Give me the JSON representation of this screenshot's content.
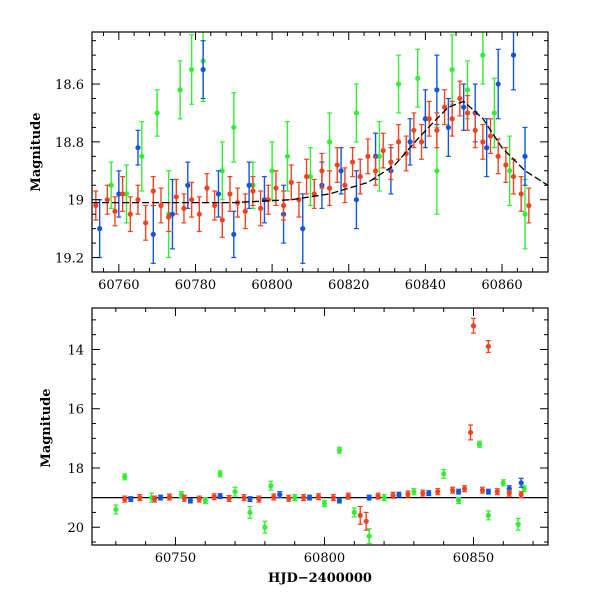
{
  "colors": {
    "green": "#33ee33",
    "blue": "#1155dd",
    "red": "#ee4422",
    "model": "#000000"
  },
  "chart_data": [
    {
      "type": "scatter",
      "title": "",
      "xlabel": "",
      "ylabel": "Magnitude",
      "xlim": [
        60753,
        60872
      ],
      "ylim": [
        19.25,
        18.42
      ],
      "y_inverted": true,
      "xticks": [
        60760,
        60780,
        60800,
        60820,
        60840,
        60860
      ],
      "yticks": [
        18.6,
        18.8,
        19,
        19.2
      ],
      "xtick_labels": [
        "60760",
        "60780",
        "60800",
        "60820",
        "60840",
        "60860"
      ],
      "ytick_labels": [
        "18.6",
        "18.8",
        "19",
        "19.2"
      ],
      "model_curve": {
        "x": [
          60753,
          60790,
          60805,
          60815,
          60825,
          60832,
          60838,
          60843,
          60846,
          60850,
          60855,
          60860,
          60866,
          60872
        ],
        "y": [
          19.01,
          19.01,
          19.0,
          18.98,
          18.94,
          18.88,
          18.79,
          18.72,
          18.68,
          18.66,
          18.72,
          18.82,
          18.9,
          18.95
        ]
      },
      "series": [
        {
          "name": "",
          "color": "green",
          "points": [
            [
              60758,
              18.95,
              0.08
            ],
            [
              60762,
              18.98,
              0.1
            ],
            [
              60766,
              18.85,
              0.12
            ],
            [
              60770,
              18.7,
              0.08
            ],
            [
              60773,
              19.05,
              0.15
            ],
            [
              60776,
              18.62,
              0.1
            ],
            [
              60779,
              18.55,
              0.12
            ],
            [
              60782,
              18.52,
              0.14
            ],
            [
              60787,
              18.9,
              0.1
            ],
            [
              60790,
              18.75,
              0.12
            ],
            [
              60795,
              18.95,
              0.08
            ],
            [
              60800,
              18.9,
              0.1
            ],
            [
              60804,
              18.85,
              0.12
            ],
            [
              60810,
              18.92,
              0.1
            ],
            [
              60815,
              18.8,
              0.1
            ],
            [
              60822,
              18.7,
              0.1
            ],
            [
              60828,
              18.85,
              0.12
            ],
            [
              60833,
              18.6,
              0.1
            ],
            [
              60838,
              18.58,
              0.1
            ],
            [
              60843,
              18.9,
              0.15
            ],
            [
              60847,
              18.55,
              0.12
            ],
            [
              60851,
              18.62,
              0.1
            ],
            [
              60855,
              18.5,
              0.1
            ],
            [
              60858,
              18.7,
              0.12
            ],
            [
              60862,
              18.9,
              0.12
            ],
            [
              60866,
              19.05,
              0.12
            ]
          ]
        },
        {
          "name": "",
          "color": "blue",
          "points": [
            [
              60755,
              19.1,
              0.1
            ],
            [
              60760,
              18.98,
              0.08
            ],
            [
              60765,
              18.82,
              0.06
            ],
            [
              60769,
              19.12,
              0.1
            ],
            [
              60774,
              19.05,
              0.12
            ],
            [
              60778,
              18.95,
              0.08
            ],
            [
              60782,
              18.55,
              0.1
            ],
            [
              60786,
              18.98,
              0.08
            ],
            [
              60790,
              19.12,
              0.08
            ],
            [
              60794,
              18.95,
              0.08
            ],
            [
              60798,
              19.0,
              0.08
            ],
            [
              60803,
              19.05,
              0.1
            ],
            [
              60808,
              19.1,
              0.12
            ],
            [
              60813,
              18.95,
              0.08
            ],
            [
              60818,
              18.9,
              0.08
            ],
            [
              60822,
              19.0,
              0.1
            ],
            [
              60827,
              18.85,
              0.08
            ],
            [
              60831,
              18.9,
              0.08
            ],
            [
              60836,
              18.8,
              0.08
            ],
            [
              60840,
              18.72,
              0.1
            ],
            [
              60843,
              18.62,
              0.12
            ],
            [
              60846,
              18.75,
              0.1
            ],
            [
              60850,
              18.68,
              0.08
            ],
            [
              60853,
              18.7,
              0.1
            ],
            [
              60856,
              18.82,
              0.1
            ],
            [
              60859,
              18.6,
              0.12
            ],
            [
              60863,
              18.5,
              0.12
            ],
            [
              60866,
              18.85,
              0.1
            ]
          ]
        },
        {
          "name": "",
          "color": "red",
          "points": [
            [
              60754,
              19.02,
              0.05
            ],
            [
              60757,
              19.0,
              0.05
            ],
            [
              60759,
              19.04,
              0.05
            ],
            [
              60761,
              18.98,
              0.06
            ],
            [
              60763,
              19.05,
              0.06
            ],
            [
              60765,
              19.0,
              0.05
            ],
            [
              60767,
              19.08,
              0.06
            ],
            [
              60769,
              18.97,
              0.05
            ],
            [
              60771,
              19.02,
              0.06
            ],
            [
              60773,
              19.06,
              0.05
            ],
            [
              60775,
              18.99,
              0.06
            ],
            [
              60777,
              19.03,
              0.05
            ],
            [
              60779,
              19.0,
              0.06
            ],
            [
              60781,
              19.05,
              0.06
            ],
            [
              60783,
              18.96,
              0.05
            ],
            [
              60785,
              19.02,
              0.05
            ],
            [
              60787,
              19.07,
              0.06
            ],
            [
              60789,
              18.98,
              0.06
            ],
            [
              60791,
              19.01,
              0.05
            ],
            [
              60793,
              19.04,
              0.06
            ],
            [
              60795,
              18.97,
              0.05
            ],
            [
              60797,
              19.03,
              0.06
            ],
            [
              60799,
              19.0,
              0.05
            ],
            [
              60801,
              18.96,
              0.06
            ],
            [
              60803,
              19.02,
              0.05
            ],
            [
              60805,
              18.94,
              0.06
            ],
            [
              60807,
              19.0,
              0.06
            ],
            [
              60809,
              18.92,
              0.06
            ],
            [
              60811,
              18.98,
              0.05
            ],
            [
              60813,
              18.9,
              0.06
            ],
            [
              60815,
              18.96,
              0.06
            ],
            [
              60817,
              18.88,
              0.06
            ],
            [
              60819,
              18.95,
              0.06
            ],
            [
              60821,
              18.87,
              0.05
            ],
            [
              60823,
              18.92,
              0.06
            ],
            [
              60825,
              18.85,
              0.06
            ],
            [
              60827,
              18.9,
              0.05
            ],
            [
              60829,
              18.83,
              0.06
            ],
            [
              60831,
              18.87,
              0.06
            ],
            [
              60833,
              18.8,
              0.06
            ],
            [
              60835,
              18.84,
              0.06
            ],
            [
              60837,
              18.76,
              0.06
            ],
            [
              60839,
              18.8,
              0.06
            ],
            [
              60841,
              18.72,
              0.06
            ],
            [
              60843,
              18.76,
              0.06
            ],
            [
              60845,
              18.68,
              0.06
            ],
            [
              60847,
              18.72,
              0.06
            ],
            [
              60849,
              18.65,
              0.06
            ],
            [
              60851,
              18.7,
              0.06
            ],
            [
              60853,
              18.76,
              0.06
            ],
            [
              60855,
              18.8,
              0.06
            ],
            [
              60857,
              18.78,
              0.06
            ],
            [
              60859,
              18.85,
              0.06
            ],
            [
              60861,
              18.88,
              0.06
            ],
            [
              60863,
              18.92,
              0.06
            ],
            [
              60865,
              18.98,
              0.06
            ],
            [
              60867,
              19.02,
              0.06
            ]
          ]
        }
      ]
    },
    {
      "type": "scatter",
      "title": "",
      "xlabel": "HJD−2400000",
      "ylabel": "Magnitude",
      "xlim": [
        60722,
        60875
      ],
      "ylim": [
        20.6,
        12.6
      ],
      "y_inverted": true,
      "xticks": [
        60750,
        60800,
        60850
      ],
      "yticks": [
        14,
        16,
        18,
        20
      ],
      "xtick_labels": [
        "60750",
        "60800",
        "60850"
      ],
      "ytick_labels": [
        "14",
        "16",
        "18",
        "20"
      ],
      "reference_line": {
        "y": 19.0
      },
      "series": [
        {
          "name": "",
          "color": "green",
          "points": [
            [
              60730,
              19.4,
              0.15
            ],
            [
              60733,
              18.3,
              0.1
            ],
            [
              60742,
              19.0,
              0.15
            ],
            [
              60752,
              18.9,
              0.1
            ],
            [
              60760,
              19.1,
              0.1
            ],
            [
              60765,
              18.2,
              0.1
            ],
            [
              60770,
              18.8,
              0.15
            ],
            [
              60775,
              19.5,
              0.2
            ],
            [
              60780,
              20.0,
              0.2
            ],
            [
              60782,
              18.6,
              0.15
            ],
            [
              60790,
              19.0,
              0.1
            ],
            [
              60800,
              19.2,
              0.1
            ],
            [
              60805,
              17.4,
              0.1
            ],
            [
              60810,
              19.5,
              0.15
            ],
            [
              60815,
              20.3,
              0.25
            ],
            [
              60820,
              19.0,
              0.1
            ],
            [
              60830,
              18.8,
              0.1
            ],
            [
              60840,
              18.2,
              0.15
            ],
            [
              60845,
              19.1,
              0.1
            ],
            [
              60852,
              17.2,
              0.1
            ],
            [
              60855,
              19.6,
              0.15
            ],
            [
              60860,
              18.5,
              0.1
            ],
            [
              60865,
              19.9,
              0.2
            ],
            [
              60867,
              18.7,
              0.1
            ]
          ]
        },
        {
          "name": "",
          "color": "blue",
          "points": [
            [
              60735,
              19.05,
              0.08
            ],
            [
              60745,
              19.0,
              0.08
            ],
            [
              60755,
              19.1,
              0.08
            ],
            [
              60765,
              18.95,
              0.08
            ],
            [
              60775,
              19.05,
              0.08
            ],
            [
              60785,
              18.9,
              0.1
            ],
            [
              60795,
              19.0,
              0.08
            ],
            [
              60805,
              19.1,
              0.08
            ],
            [
              60815,
              19.0,
              0.08
            ],
            [
              60825,
              18.9,
              0.08
            ],
            [
              60835,
              18.85,
              0.08
            ],
            [
              60845,
              18.8,
              0.08
            ],
            [
              60855,
              18.8,
              0.08
            ],
            [
              60862,
              18.7,
              0.1
            ],
            [
              60866,
              18.5,
              0.15
            ]
          ]
        },
        {
          "name": "",
          "color": "red",
          "points": [
            [
              60733,
              19.05,
              0.1
            ],
            [
              60738,
              19.0,
              0.1
            ],
            [
              60743,
              19.05,
              0.1
            ],
            [
              60748,
              18.98,
              0.1
            ],
            [
              60753,
              19.02,
              0.1
            ],
            [
              60758,
              19.05,
              0.1
            ],
            [
              60763,
              18.97,
              0.1
            ],
            [
              60768,
              19.03,
              0.1
            ],
            [
              60773,
              19.0,
              0.1
            ],
            [
              60778,
              19.05,
              0.1
            ],
            [
              60783,
              18.98,
              0.1
            ],
            [
              60788,
              19.02,
              0.1
            ],
            [
              60793,
              19.0,
              0.1
            ],
            [
              60798,
              18.97,
              0.1
            ],
            [
              60803,
              19.0,
              0.1
            ],
            [
              60808,
              18.95,
              0.1
            ],
            [
              60812,
              19.6,
              0.3
            ],
            [
              60814,
              19.8,
              0.3
            ],
            [
              60818,
              18.95,
              0.1
            ],
            [
              60823,
              18.92,
              0.1
            ],
            [
              60828,
              18.88,
              0.1
            ],
            [
              60833,
              18.85,
              0.1
            ],
            [
              60838,
              18.8,
              0.1
            ],
            [
              60843,
              18.75,
              0.1
            ],
            [
              60847,
              18.7,
              0.1
            ],
            [
              60849,
              16.8,
              0.25
            ],
            [
              60850,
              13.2,
              0.25
            ],
            [
              60853,
              18.75,
              0.1
            ],
            [
              60855,
              13.9,
              0.2
            ],
            [
              60858,
              18.8,
              0.1
            ],
            [
              60862,
              18.85,
              0.1
            ],
            [
              60866,
              18.9,
              0.1
            ]
          ]
        }
      ]
    }
  ]
}
